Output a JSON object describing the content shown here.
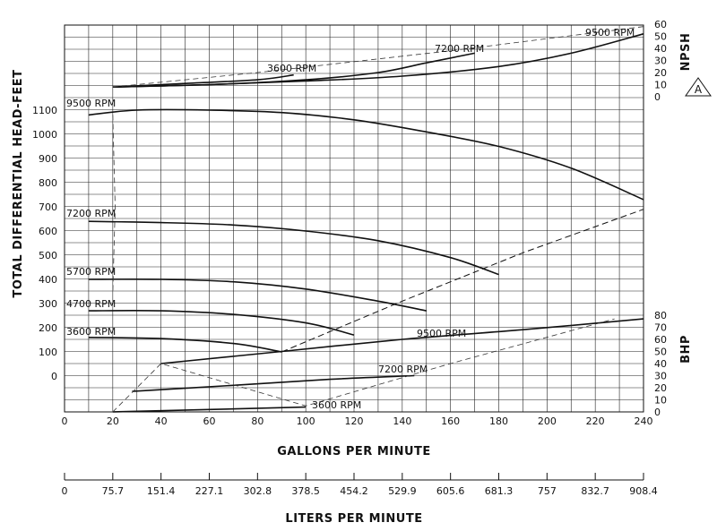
{
  "chart_data": {
    "type": "line",
    "title": "",
    "xlabel": "GALLONS PER MINUTE",
    "x2label": "LITERS PER MINUTE",
    "ylabel": "TOTAL DIFFERENTIAL HEAD-FEET",
    "npsh_label": "NPSH",
    "bhp_label": "BHP",
    "badge": "A",
    "xlim": [
      0,
      240
    ],
    "grid": true,
    "x_ticks": [
      "0",
      "20",
      "40",
      "60",
      "80",
      "100",
      "120",
      "140",
      "160",
      "180",
      "200",
      "220",
      "240"
    ],
    "lpm_ticks": [
      "0",
      "75.7",
      "151.4",
      "227.1",
      "302.8",
      "378.5",
      "454.2",
      "529.9",
      "605.6",
      "681.3",
      "757",
      "832.7",
      "908.4"
    ],
    "head_ticks": [
      "0",
      "100",
      "200",
      "300",
      "400",
      "500",
      "600",
      "700",
      "800",
      "900",
      "1000",
      "1100"
    ],
    "npsh_ticks": [
      "0",
      "10",
      "20",
      "30",
      "40",
      "50",
      "60"
    ],
    "bhp_ticks": [
      "0",
      "10",
      "20",
      "30",
      "40",
      "50",
      "60",
      "70",
      "80"
    ],
    "head_curves": [
      {
        "name": "9500 RPM",
        "x": [
          10,
          30,
          60,
          90,
          120,
          150,
          180,
          210,
          240
        ],
        "y": [
          1080,
          1100,
          1100,
          1090,
          1060,
          1010,
          950,
          860,
          730
        ]
      },
      {
        "name": "7200 RPM",
        "x": [
          10,
          40,
          70,
          100,
          130,
          160,
          180
        ],
        "y": [
          640,
          635,
          625,
          600,
          560,
          490,
          420
        ]
      },
      {
        "name": "5700 RPM",
        "x": [
          10,
          40,
          70,
          100,
          130,
          150
        ],
        "y": [
          400,
          400,
          390,
          360,
          310,
          270
        ]
      },
      {
        "name": "4700 RPM",
        "x": [
          10,
          40,
          70,
          100,
          120
        ],
        "y": [
          270,
          270,
          255,
          220,
          170
        ]
      },
      {
        "name": "3600 RPM",
        "x": [
          10,
          40,
          70,
          90
        ],
        "y": [
          160,
          155,
          135,
          100
        ]
      }
    ],
    "head_dashed": {
      "x": [
        90,
        140,
        190,
        240
      ],
      "y": [
        100,
        310,
        510,
        690
      ]
    },
    "npsh_curves": [
      {
        "name": "9500 RPM",
        "x": [
          20,
          60,
          100,
          140,
          180,
          210,
          240
        ],
        "y": [
          8,
          10,
          13,
          17,
          25,
          36,
          52
        ]
      },
      {
        "name": "7200 RPM",
        "x": [
          20,
          60,
          100,
          130,
          150,
          170
        ],
        "y": [
          8,
          10,
          14,
          20,
          28,
          36
        ]
      },
      {
        "name": "3600 RPM",
        "x": [
          20,
          50,
          80,
          95
        ],
        "y": [
          8,
          11,
          14,
          18
        ]
      }
    ],
    "npsh_dashed": {
      "x": [
        20,
        80,
        160,
        240
      ],
      "y": [
        8,
        20,
        38,
        58
      ]
    },
    "bhp_curves": [
      {
        "name": "9500 RPM",
        "x": [
          40,
          90,
          140,
          190,
          240
        ],
        "y": [
          40,
          50,
          60,
          68,
          77
        ]
      },
      {
        "name": "7200 RPM",
        "x": [
          28,
          70,
          110,
          145
        ],
        "y": [
          17,
          22,
          27,
          30
        ]
      },
      {
        "name": "3600 RPM",
        "x": [
          20,
          60,
          100
        ],
        "y": [
          0,
          2,
          4
        ]
      }
    ],
    "bhp_dashed": {
      "x": [
        20,
        40,
        100,
        160,
        228
      ],
      "y": [
        0,
        40,
        5,
        40,
        77
      ]
    },
    "suction_dashed": {
      "x": [
        20,
        21,
        20
      ],
      "y": [
        1080,
        700,
        340
      ]
    }
  }
}
